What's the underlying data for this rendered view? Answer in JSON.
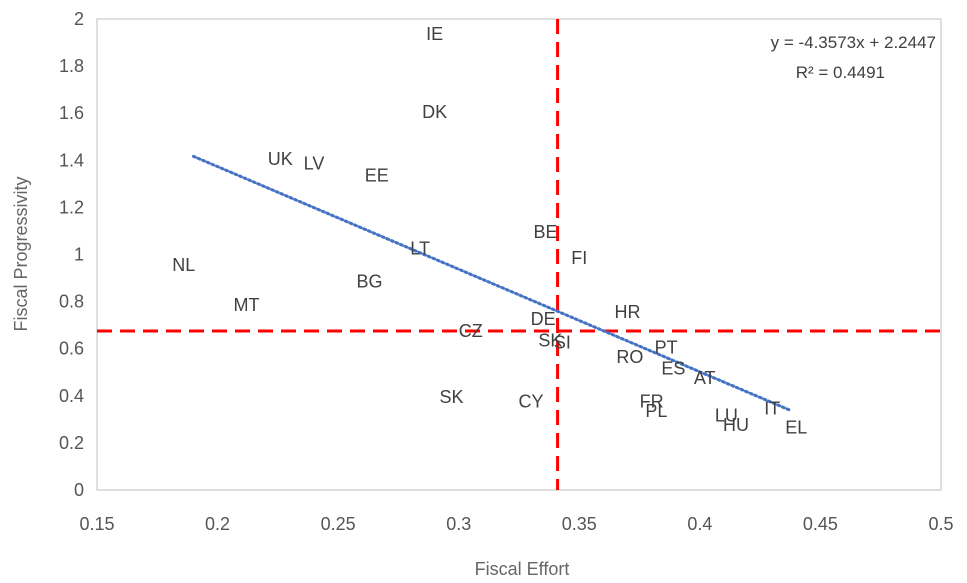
{
  "chart_data": {
    "type": "scatter",
    "xlabel": "Fiscal Effort",
    "ylabel": "Fiscal Progressivity",
    "xlim": [
      0.15,
      0.5
    ],
    "ylim": [
      0,
      2
    ],
    "x_ticks": [
      "0.15",
      "0.2",
      "0.25",
      "0.3",
      "0.35",
      "0.4",
      "0.45",
      "0.5"
    ],
    "y_ticks": [
      "0",
      "0.2",
      "0.4",
      "0.6",
      "0.8",
      "1",
      "1.2",
      "1.4",
      "1.6",
      "1.8",
      "2"
    ],
    "grid": false,
    "points": [
      {
        "label": "IE",
        "x": 0.29,
        "y": 1.94
      },
      {
        "label": "DK",
        "x": 0.29,
        "y": 1.61
      },
      {
        "label": "UK",
        "x": 0.226,
        "y": 1.41
      },
      {
        "label": "LV",
        "x": 0.24,
        "y": 1.39
      },
      {
        "label": "EE",
        "x": 0.266,
        "y": 1.34
      },
      {
        "label": "NL",
        "x": 0.186,
        "y": 0.96
      },
      {
        "label": "MT",
        "x": 0.212,
        "y": 0.79
      },
      {
        "label": "BG",
        "x": 0.263,
        "y": 0.89
      },
      {
        "label": "LT",
        "x": 0.284,
        "y": 1.03
      },
      {
        "label": "BE",
        "x": 0.336,
        "y": 1.1
      },
      {
        "label": "FI",
        "x": 0.35,
        "y": 0.99
      },
      {
        "label": "CZ",
        "x": 0.305,
        "y": 0.68
      },
      {
        "label": "DE",
        "x": 0.335,
        "y": 0.73
      },
      {
        "label": "SK",
        "x": 0.338,
        "y": 0.64
      },
      {
        "label": "SI",
        "x": 0.343,
        "y": 0.63
      },
      {
        "label": "HR",
        "x": 0.37,
        "y": 0.76
      },
      {
        "label": "PT",
        "x": 0.386,
        "y": 0.61
      },
      {
        "label": "RO",
        "x": 0.371,
        "y": 0.57
      },
      {
        "label": "ES",
        "x": 0.389,
        "y": 0.52
      },
      {
        "label": "AT",
        "x": 0.402,
        "y": 0.48
      },
      {
        "label": "SK",
        "x": 0.297,
        "y": 0.4
      },
      {
        "label": "CY",
        "x": 0.33,
        "y": 0.38
      },
      {
        "label": "FR",
        "x": 0.38,
        "y": 0.38
      },
      {
        "label": "PL",
        "x": 0.382,
        "y": 0.34
      },
      {
        "label": "LU",
        "x": 0.411,
        "y": 0.32
      },
      {
        "label": "HU",
        "x": 0.415,
        "y": 0.28
      },
      {
        "label": "IT",
        "x": 0.43,
        "y": 0.35
      },
      {
        "label": "EL",
        "x": 0.44,
        "y": 0.27
      }
    ],
    "trendline": {
      "x_start": 0.19,
      "x_end": 0.437,
      "slope": -4.3573,
      "intercept": 2.2447,
      "color": "#4472c4",
      "style": "dotted"
    },
    "reference_lines": {
      "vertical_x": 0.341,
      "horizontal_y": 0.675,
      "color": "#ff0000",
      "style": "dashed"
    },
    "equation": "y = -4.3573x + 2.2447",
    "r_squared": "R² = 0.4491"
  }
}
